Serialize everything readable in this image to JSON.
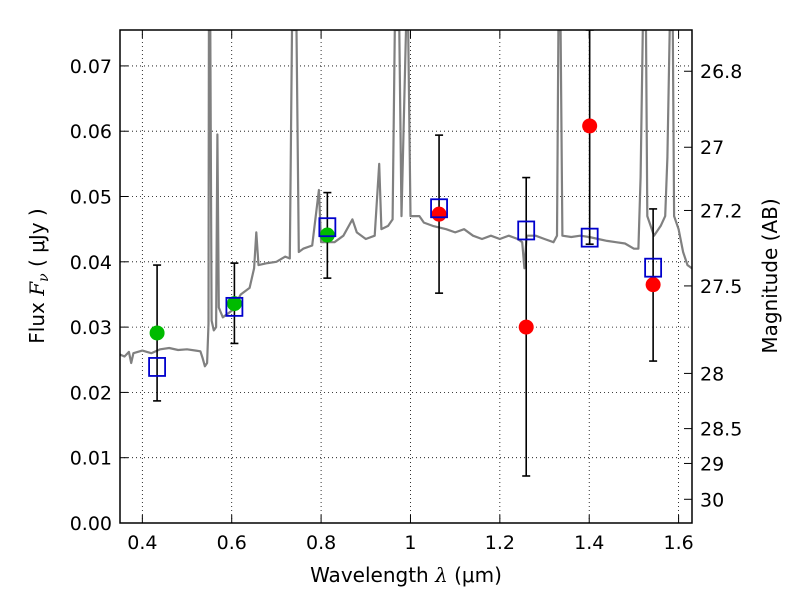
{
  "chart_data": {
    "type": "scatter",
    "title": "",
    "xlabel": "Wavelength  λ (μm)",
    "xlabel_parts": {
      "text": "Wavelength  ",
      "symbol": "λ",
      "unit": "(μm)"
    },
    "ylabel": "Flux  Fν  ( μJy )",
    "ylabel_parts": {
      "text": "Flux  ",
      "symbol": "F",
      "sub": "ν",
      "unit": "( μJy )"
    },
    "y2label": "Magnitude (AB)",
    "xlim": [
      0.35,
      1.63
    ],
    "ylim": [
      0.0,
      0.0755
    ],
    "grid": true,
    "x_ticks": [
      {
        "v": 0.4,
        "label": "0.4"
      },
      {
        "v": 0.6,
        "label": "0.6"
      },
      {
        "v": 0.8,
        "label": "0.8"
      },
      {
        "v": 1.0,
        "label": "1"
      },
      {
        "v": 1.2,
        "label": "1.2"
      },
      {
        "v": 1.4,
        "label": "1.4"
      },
      {
        "v": 1.6,
        "label": "1.6"
      }
    ],
    "y_ticks": [
      {
        "v": 0.0,
        "label": "0.00"
      },
      {
        "v": 0.01,
        "label": "0.01"
      },
      {
        "v": 0.02,
        "label": "0.02"
      },
      {
        "v": 0.03,
        "label": "0.03"
      },
      {
        "v": 0.04,
        "label": "0.04"
      },
      {
        "v": 0.05,
        "label": "0.05"
      },
      {
        "v": 0.06,
        "label": "0.06"
      },
      {
        "v": 0.07,
        "label": "0.07"
      }
    ],
    "y2_ticks": [
      {
        "mag": 26.8,
        "label": "26.8"
      },
      {
        "mag": 27,
        "label": "27"
      },
      {
        "mag": 27.2,
        "label": "27.2"
      },
      {
        "mag": 27.5,
        "label": "27.5"
      },
      {
        "mag": 28,
        "label": "28"
      },
      {
        "mag": 28.5,
        "label": "28.5"
      },
      {
        "mag": 29,
        "label": "29"
      },
      {
        "mag": 30,
        "label": "30"
      }
    ],
    "colors": {
      "spectrum": "#808080",
      "green": "#00bb00",
      "red": "#ff0000",
      "square": "#0000cc",
      "errorbar": "#000000",
      "grid": "#000000"
    },
    "series": [
      {
        "type": "errorbar-squares",
        "points": [
          {
            "x": 0.433,
            "y": 0.0239,
            "ylow": 0.0187,
            "yhigh": 0.0395
          },
          {
            "x": 0.606,
            "y": 0.0331,
            "ylow": 0.0275,
            "yhigh": 0.0398
          },
          {
            "x": 0.814,
            "y": 0.0453,
            "ylow": 0.0375,
            "yhigh": 0.0506
          },
          {
            "x": 1.064,
            "y": 0.0482,
            "ylow": 0.0352,
            "yhigh": 0.0594
          },
          {
            "x": 1.259,
            "y": 0.0448,
            "ylow": 0.0072,
            "yhigh": 0.0529
          },
          {
            "x": 1.401,
            "y": 0.0437,
            "ylow": 0.0427,
            "yhigh": 0.0755
          },
          {
            "x": 1.543,
            "y": 0.0391,
            "ylow": 0.0248,
            "yhigh": 0.0481
          }
        ]
      },
      {
        "type": "circles-green",
        "points": [
          {
            "x": 0.433,
            "y": 0.0291
          },
          {
            "x": 0.606,
            "y": 0.0336
          },
          {
            "x": 0.814,
            "y": 0.0441
          }
        ]
      },
      {
        "type": "circles-red",
        "points": [
          {
            "x": 1.064,
            "y": 0.0473
          },
          {
            "x": 1.259,
            "y": 0.03
          },
          {
            "x": 1.401,
            "y": 0.0608
          },
          {
            "x": 1.543,
            "y": 0.0365
          }
        ]
      },
      {
        "type": "spectrum",
        "points": [
          [
            0.35,
            0.0258
          ],
          [
            0.36,
            0.0255
          ],
          [
            0.37,
            0.0262
          ],
          [
            0.375,
            0.0245
          ],
          [
            0.38,
            0.026
          ],
          [
            0.4,
            0.0264
          ],
          [
            0.42,
            0.026
          ],
          [
            0.44,
            0.0266
          ],
          [
            0.46,
            0.0268
          ],
          [
            0.48,
            0.0265
          ],
          [
            0.5,
            0.0266
          ],
          [
            0.52,
            0.0264
          ],
          [
            0.53,
            0.0263
          ],
          [
            0.535,
            0.0252
          ],
          [
            0.54,
            0.024
          ],
          [
            0.545,
            0.0245
          ],
          [
            0.548,
            0.0305
          ],
          [
            0.549,
            0.0755
          ],
          [
            0.552,
            0.0755
          ],
          [
            0.555,
            0.031
          ],
          [
            0.56,
            0.0295
          ],
          [
            0.565,
            0.03
          ],
          [
            0.568,
            0.0595
          ],
          [
            0.571,
            0.033
          ],
          [
            0.58,
            0.0315
          ],
          [
            0.6,
            0.0325
          ],
          [
            0.62,
            0.035
          ],
          [
            0.64,
            0.036
          ],
          [
            0.65,
            0.039
          ],
          [
            0.655,
            0.0445
          ],
          [
            0.66,
            0.0395
          ],
          [
            0.68,
            0.0398
          ],
          [
            0.7,
            0.04
          ],
          [
            0.72,
            0.0408
          ],
          [
            0.73,
            0.0405
          ],
          [
            0.735,
            0.0755
          ],
          [
            0.745,
            0.0755
          ],
          [
            0.75,
            0.0415
          ],
          [
            0.76,
            0.042
          ],
          [
            0.78,
            0.0425
          ],
          [
            0.795,
            0.051
          ],
          [
            0.8,
            0.043
          ],
          [
            0.83,
            0.043
          ],
          [
            0.85,
            0.044
          ],
          [
            0.87,
            0.0465
          ],
          [
            0.88,
            0.0445
          ],
          [
            0.9,
            0.0435
          ],
          [
            0.92,
            0.044
          ],
          [
            0.93,
            0.055
          ],
          [
            0.935,
            0.045
          ],
          [
            0.95,
            0.0455
          ],
          [
            0.96,
            0.0465
          ],
          [
            0.965,
            0.0755
          ],
          [
            0.975,
            0.0755
          ],
          [
            0.98,
            0.047
          ],
          [
            0.99,
            0.0755
          ],
          [
            0.995,
            0.0755
          ],
          [
            1.0,
            0.047
          ],
          [
            1.02,
            0.047
          ],
          [
            1.03,
            0.046
          ],
          [
            1.05,
            0.0455
          ],
          [
            1.08,
            0.045
          ],
          [
            1.1,
            0.0445
          ],
          [
            1.12,
            0.045
          ],
          [
            1.14,
            0.044
          ],
          [
            1.16,
            0.0435
          ],
          [
            1.18,
            0.044
          ],
          [
            1.2,
            0.0435
          ],
          [
            1.22,
            0.044
          ],
          [
            1.24,
            0.0435
          ],
          [
            1.25,
            0.043
          ],
          [
            1.255,
            0.039
          ],
          [
            1.26,
            0.044
          ],
          [
            1.28,
            0.044
          ],
          [
            1.3,
            0.0435
          ],
          [
            1.32,
            0.043
          ],
          [
            1.328,
            0.044
          ],
          [
            1.331,
            0.0755
          ],
          [
            1.336,
            0.0755
          ],
          [
            1.34,
            0.044
          ],
          [
            1.36,
            0.0438
          ],
          [
            1.38,
            0.044
          ],
          [
            1.4,
            0.0438
          ],
          [
            1.42,
            0.0435
          ],
          [
            1.44,
            0.0432
          ],
          [
            1.46,
            0.043
          ],
          [
            1.48,
            0.0428
          ],
          [
            1.5,
            0.042
          ],
          [
            1.51,
            0.042
          ],
          [
            1.515,
            0.053
          ],
          [
            1.52,
            0.0755
          ],
          [
            1.527,
            0.0755
          ],
          [
            1.53,
            0.047
          ],
          [
            1.545,
            0.044
          ],
          [
            1.56,
            0.0455
          ],
          [
            1.57,
            0.047
          ],
          [
            1.575,
            0.056
          ],
          [
            1.58,
            0.0755
          ],
          [
            1.587,
            0.0755
          ],
          [
            1.59,
            0.047
          ],
          [
            1.6,
            0.045
          ],
          [
            1.61,
            0.0415
          ],
          [
            1.62,
            0.0395
          ],
          [
            1.63,
            0.039
          ]
        ]
      }
    ]
  }
}
